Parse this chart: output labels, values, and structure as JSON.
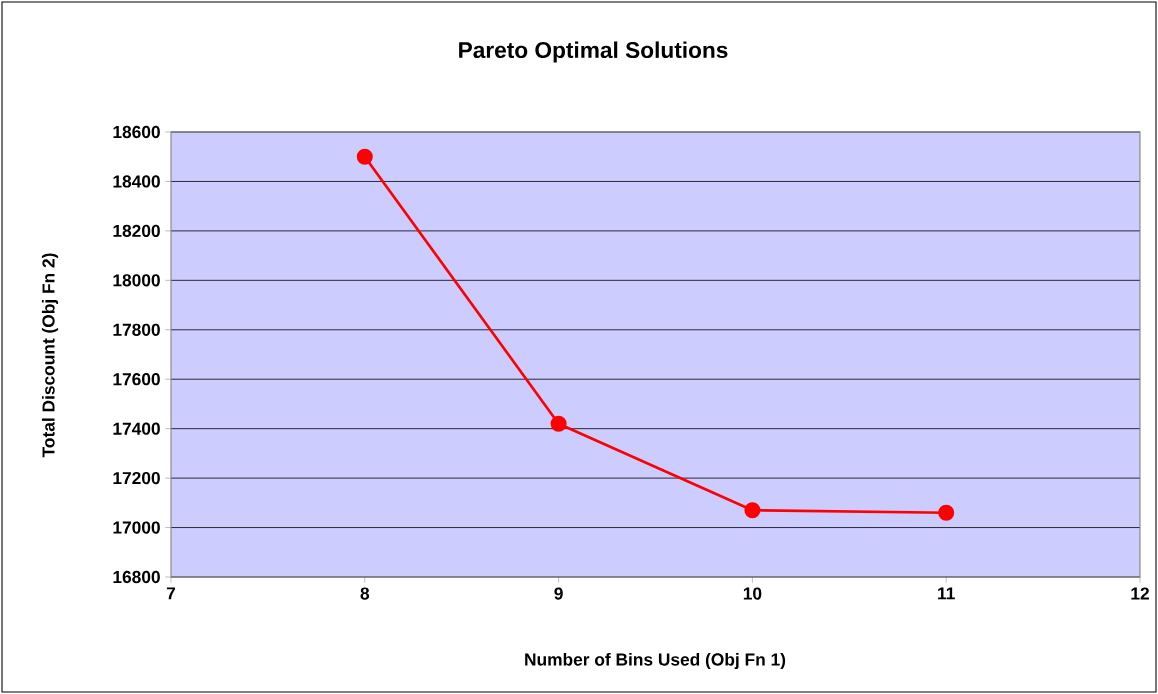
{
  "chart_data": {
    "type": "line",
    "title": "Pareto Optimal Solutions",
    "xlabel": "Number of Bins Used (Obj Fn 1)",
    "ylabel": "Total Discount (Obj Fn 2)",
    "x": [
      8,
      9,
      10,
      11
    ],
    "series": [
      {
        "color": "#ff0000",
        "values": [
          18500,
          17420,
          17070,
          17060
        ]
      }
    ],
    "xlim": [
      7,
      12
    ],
    "ylim": [
      16800,
      18600
    ],
    "xticks": [
      7,
      8,
      9,
      10,
      11,
      12
    ],
    "yticks": [
      16800,
      17000,
      17200,
      17400,
      17600,
      17800,
      18000,
      18200,
      18400,
      18600
    ],
    "grid": "y",
    "marker": "circle",
    "line_style": "solid"
  }
}
